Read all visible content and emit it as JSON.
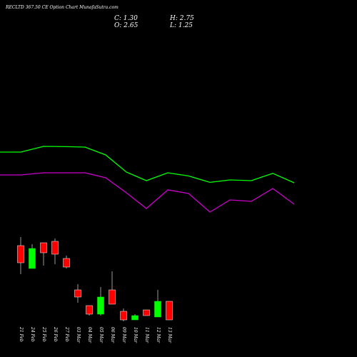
{
  "title": "RECLTD 367.50 CE Option Chart MunafaSutra.com",
  "ohlc": {
    "c": "C: 1.30",
    "h": "H: 2.75",
    "o": "O: 2.65",
    "l": "L: 1.25"
  },
  "colors": {
    "background": "#000000",
    "up": "#00ff00",
    "down": "#ff0000",
    "upper_band": "#00ff00",
    "lower_band": "#cc00cc",
    "text": "#ffffff"
  },
  "chart_data": {
    "type": "candlestick",
    "ylim": [
      0,
      17
    ],
    "categories": [
      "21 Feb",
      "24 Feb",
      "25 Feb",
      "26 Feb",
      "27 Feb",
      "03 Mar",
      "04 Mar",
      "05 Mar",
      "06 Mar",
      "09 Mar",
      "10 Mar",
      "11 Mar",
      "12 Mar",
      "13 Mar"
    ],
    "candles": [
      {
        "o": 7.8,
        "h": 8.4,
        "l": 5.8,
        "c": 6.6,
        "color": "down"
      },
      {
        "o": 6.2,
        "h": 7.9,
        "l": 6.2,
        "c": 7.6,
        "color": "up"
      },
      {
        "o": 8.0,
        "h": 8.0,
        "l": 6.4,
        "c": 7.3,
        "color": "down"
      },
      {
        "o": 8.1,
        "h": 8.3,
        "l": 6.5,
        "c": 7.2,
        "color": "down"
      },
      {
        "o": 6.9,
        "h": 7.1,
        "l": 6.2,
        "c": 6.3,
        "color": "down"
      },
      {
        "o": 4.7,
        "h": 5.1,
        "l": 3.8,
        "c": 4.2,
        "color": "down"
      },
      {
        "o": 3.6,
        "h": 3.6,
        "l": 2.9,
        "c": 3.0,
        "color": "down"
      },
      {
        "o": 3.0,
        "h": 4.9,
        "l": 2.9,
        "c": 4.2,
        "color": "up"
      },
      {
        "o": 4.7,
        "h": 6.0,
        "l": 3.7,
        "c": 3.7,
        "color": "down"
      },
      {
        "o": 3.2,
        "h": 3.4,
        "l": 2.5,
        "c": 2.6,
        "color": "down"
      },
      {
        "o": 2.6,
        "h": 3.0,
        "l": 2.6,
        "c": 2.9,
        "color": "up"
      },
      {
        "o": 3.3,
        "h": 3.3,
        "l": 2.9,
        "c": 2.9,
        "color": "down"
      },
      {
        "o": 2.8,
        "h": 4.7,
        "l": 2.8,
        "c": 3.9,
        "color": "up"
      },
      {
        "o": 3.9,
        "h": 3.9,
        "l": 2.6,
        "c": 2.6,
        "color": "down"
      }
    ],
    "upper_band": [
      14.35,
      14.35,
      14.75,
      14.73,
      14.7,
      14.15,
      12.95,
      12.35,
      12.9,
      12.68,
      12.23,
      12.4,
      12.35,
      12.86,
      12.2
    ],
    "lower_band": [
      12.75,
      12.75,
      12.9,
      12.9,
      12.9,
      12.55,
      11.5,
      10.4,
      11.7,
      11.45,
      10.15,
      11.0,
      10.9,
      11.8,
      10.7
    ]
  }
}
